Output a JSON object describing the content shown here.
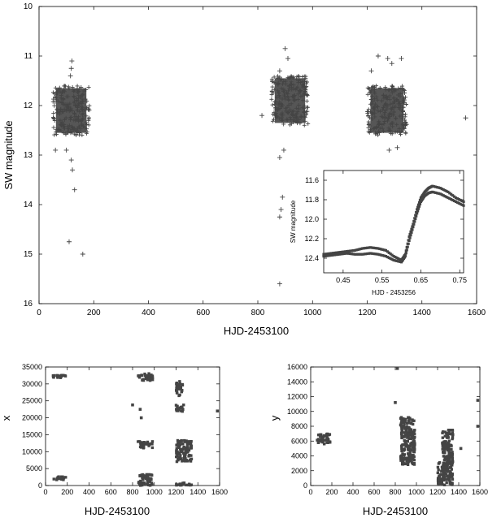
{
  "chart_data": [
    {
      "id": "main",
      "type": "scatter",
      "xlabel": "HJD-2453100",
      "ylabel": "SW magnitude",
      "xlim": [
        0,
        1600
      ],
      "ylim": [
        16,
        10
      ],
      "y_inverted": true,
      "xticks": [
        "0",
        "200",
        "400",
        "600",
        "800",
        "1000",
        "1200",
        "1400",
        "1600"
      ],
      "yticks": [
        "10",
        "11",
        "12",
        "13",
        "14",
        "15",
        "16"
      ],
      "marker": "plus",
      "clusters": [
        {
          "x_range": [
            50,
            185
          ],
          "y_range": [
            11.6,
            12.6
          ]
        },
        {
          "x_range": [
            850,
            985
          ],
          "y_range": [
            11.4,
            12.4
          ]
        },
        {
          "x_range": [
            1200,
            1345
          ],
          "y_range": [
            11.6,
            12.6
          ]
        }
      ],
      "outliers": [
        {
          "x": 120,
          "y": 11.1
        },
        {
          "x": 118,
          "y": 11.25
        },
        {
          "x": 115,
          "y": 11.4
        },
        {
          "x": 100,
          "y": 12.9
        },
        {
          "x": 118,
          "y": 13.1
        },
        {
          "x": 122,
          "y": 13.3
        },
        {
          "x": 130,
          "y": 13.7
        },
        {
          "x": 60,
          "y": 12.9
        },
        {
          "x": 110,
          "y": 14.75
        },
        {
          "x": 160,
          "y": 15.0
        },
        {
          "x": 900,
          "y": 10.85
        },
        {
          "x": 910,
          "y": 11.05
        },
        {
          "x": 880,
          "y": 11.3
        },
        {
          "x": 815,
          "y": 12.2
        },
        {
          "x": 895,
          "y": 12.9
        },
        {
          "x": 880,
          "y": 13.05
        },
        {
          "x": 890,
          "y": 13.85
        },
        {
          "x": 885,
          "y": 14.1
        },
        {
          "x": 880,
          "y": 14.25
        },
        {
          "x": 880,
          "y": 15.6
        },
        {
          "x": 1240,
          "y": 11.0
        },
        {
          "x": 1275,
          "y": 11.05
        },
        {
          "x": 1290,
          "y": 11.15
        },
        {
          "x": 1325,
          "y": 11.05
        },
        {
          "x": 1215,
          "y": 11.3
        },
        {
          "x": 1310,
          "y": 12.85
        },
        {
          "x": 1280,
          "y": 12.9
        },
        {
          "x": 1560,
          "y": 12.25
        }
      ]
    },
    {
      "id": "inset",
      "type": "scatter",
      "xlabel": "HJD - 2453256",
      "ylabel": "SW magnitude",
      "xlim": [
        0.4,
        0.76
      ],
      "ylim": [
        12.55,
        11.5
      ],
      "y_inverted": true,
      "xticks": [
        "0.45",
        "0.55",
        "0.65",
        "0.75"
      ],
      "yticks": [
        "11.6",
        "11.8",
        "12.0",
        "12.2",
        "12.4"
      ],
      "marker": "square",
      "series": [
        {
          "x": [
            0.4,
            0.42,
            0.44,
            0.46,
            0.48,
            0.5,
            0.52,
            0.54,
            0.56,
            0.58,
            0.6,
            0.61,
            0.62,
            0.63,
            0.64,
            0.65,
            0.66,
            0.67,
            0.68,
            0.7,
            0.72,
            0.74,
            0.76
          ],
          "y": [
            12.36,
            12.35,
            12.34,
            12.33,
            12.32,
            12.3,
            12.29,
            12.3,
            12.32,
            12.38,
            12.42,
            12.36,
            12.18,
            12.05,
            11.9,
            11.78,
            11.72,
            11.68,
            11.66,
            11.68,
            11.72,
            11.78,
            11.82
          ]
        },
        {
          "x": [
            0.4,
            0.42,
            0.44,
            0.46,
            0.48,
            0.5,
            0.52,
            0.54,
            0.56,
            0.58,
            0.6,
            0.61,
            0.62,
            0.63,
            0.64,
            0.65,
            0.66,
            0.67,
            0.68,
            0.7,
            0.72,
            0.74,
            0.76
          ],
          "y": [
            12.38,
            12.37,
            12.36,
            12.35,
            12.36,
            12.36,
            12.35,
            12.36,
            12.38,
            12.42,
            12.44,
            12.38,
            12.22,
            12.08,
            11.94,
            11.82,
            11.76,
            11.73,
            11.72,
            11.74,
            11.78,
            11.82,
            11.86
          ]
        }
      ]
    },
    {
      "id": "x_position",
      "type": "scatter",
      "xlabel": "HJD-2453100",
      "ylabel": "x",
      "xlim": [
        0,
        1600
      ],
      "ylim": [
        0,
        35000
      ],
      "xticks": [
        "0",
        "200",
        "400",
        "600",
        "800",
        "1000",
        "1200",
        "1400",
        "1600"
      ],
      "yticks": [
        "0",
        "5000",
        "10000",
        "15000",
        "20000",
        "25000",
        "30000",
        "35000"
      ],
      "marker": "square",
      "blocks": [
        {
          "x": [
            60,
            185
          ],
          "y": [
            31800,
            32600
          ]
        },
        {
          "x": [
            60,
            185
          ],
          "y": [
            1600,
            2600
          ]
        },
        {
          "x": [
            850,
            985
          ],
          "y": [
            30800,
            33100
          ]
        },
        {
          "x": [
            850,
            985
          ],
          "y": [
            10900,
            13000
          ]
        },
        {
          "x": [
            850,
            985
          ],
          "y": [
            0,
            3300
          ]
        },
        {
          "x": [
            1200,
            1345
          ],
          "y": [
            10600,
            13300
          ]
        },
        {
          "x": [
            1200,
            1345
          ],
          "y": [
            7000,
            10600
          ]
        },
        {
          "x": [
            1200,
            1345
          ],
          "y": [
            0,
            800
          ]
        },
        {
          "x": [
            1200,
            1260
          ],
          "y": [
            26500,
            30800
          ]
        },
        {
          "x": [
            1200,
            1270
          ],
          "y": [
            21800,
            24000
          ]
        }
      ],
      "points": [
        {
          "x": 800,
          "y": 23800
        },
        {
          "x": 870,
          "y": 22500
        },
        {
          "x": 880,
          "y": 20000
        },
        {
          "x": 1580,
          "y": 22000
        }
      ]
    },
    {
      "id": "y_position",
      "type": "scatter",
      "xlabel": "HJD-2453100",
      "ylabel": "y",
      "xlim": [
        0,
        1600
      ],
      "ylim": [
        0,
        16000
      ],
      "xticks": [
        "0",
        "200",
        "400",
        "600",
        "800",
        "1000",
        "1200",
        "1400",
        "1600"
      ],
      "yticks": [
        "0",
        "2000",
        "4000",
        "6000",
        "8000",
        "10000",
        "12000",
        "14000",
        "16000"
      ],
      "marker": "square",
      "blocks": [
        {
          "x": [
            60,
            185
          ],
          "y": [
            5600,
            7000
          ]
        },
        {
          "x": [
            850,
            985
          ],
          "y": [
            7000,
            9200
          ]
        },
        {
          "x": [
            850,
            985
          ],
          "y": [
            2800,
            7000
          ]
        },
        {
          "x": [
            1200,
            1345
          ],
          "y": [
            0,
            3400
          ]
        },
        {
          "x": [
            1245,
            1345
          ],
          "y": [
            3400,
            7500
          ]
        }
      ],
      "points": [
        {
          "x": 820,
          "y": 15800
        },
        {
          "x": 800,
          "y": 11200
        },
        {
          "x": 1580,
          "y": 11500
        },
        {
          "x": 1580,
          "y": 8000
        },
        {
          "x": 1420,
          "y": 5000
        }
      ]
    }
  ]
}
